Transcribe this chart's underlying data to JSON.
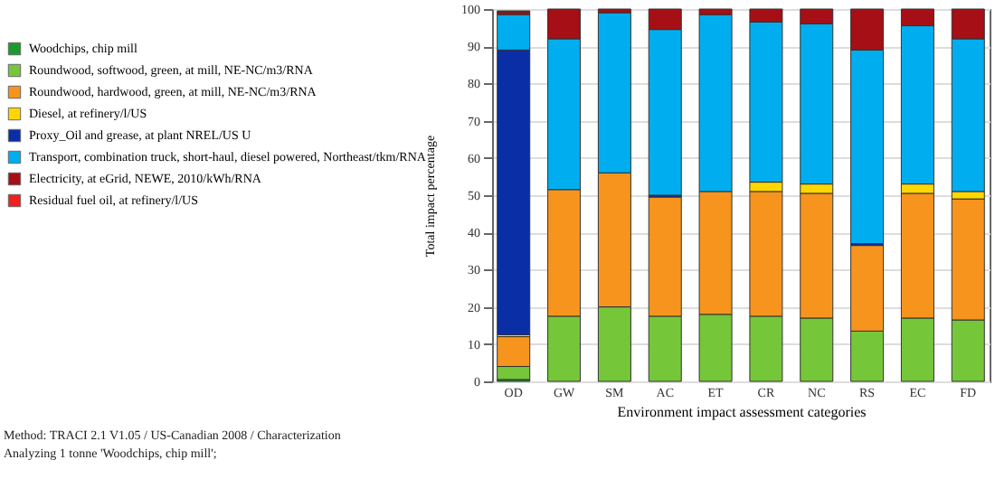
{
  "chart_data": {
    "type": "bar",
    "stacked": true,
    "xlabel": "Environment impact assessment categories",
    "ylabel": "Total impact percentage",
    "categories": [
      "OD",
      "GW",
      "SM",
      "AC",
      "ET",
      "CR",
      "NC",
      "RS",
      "EC",
      "FD"
    ],
    "series": [
      {
        "name": "Woodchips, chip mill",
        "color": "#1a9b2e",
        "values": [
          0.5,
          0,
          0,
          0,
          0,
          0,
          0,
          0,
          0,
          0
        ]
      },
      {
        "name": "Roundwood, softwood, green, at mill, NE-NC/m3/RNA",
        "color": "#76c63a",
        "values": [
          3.5,
          17.5,
          20,
          17.5,
          18,
          17.5,
          17,
          13.5,
          17,
          16.5
        ]
      },
      {
        "name": "Roundwood, hardwood, green, at mill, NE-NC/m3/RNA",
        "color": "#f7941d",
        "values": [
          8,
          34,
          36,
          32,
          33,
          33.5,
          33.5,
          23,
          33.5,
          32.5
        ]
      },
      {
        "name": "Diesel, at refinery/l/US",
        "color": "#ffd700",
        "values": [
          0.5,
          0,
          0,
          0,
          0,
          2.5,
          2.5,
          0,
          2.5,
          2
        ]
      },
      {
        "name": "Proxy_Oil and grease, at plant NREL/US U",
        "color": "#0a2ea6",
        "values": [
          76.5,
          0,
          0,
          0.5,
          0,
          0,
          0,
          0.5,
          0,
          0
        ]
      },
      {
        "name": "Transport, combination truck, short-haul, diesel powered, Northeast/tkm/RNA",
        "color": "#00aeef",
        "values": [
          9.5,
          40.5,
          43,
          44.5,
          47.5,
          43,
          43,
          52,
          42.5,
          41
        ]
      },
      {
        "name": "Electricity, at eGrid, NEWE, 2010/kWh/RNA",
        "color": "#a50f15",
        "values": [
          0.8,
          8,
          1,
          5.5,
          1.5,
          3.5,
          4,
          11,
          4.5,
          8
        ]
      },
      {
        "name": "Residual fuel oil, at refinery/l/US",
        "color": "#ee2020",
        "values": [
          0.2,
          0,
          0,
          0,
          0,
          0,
          0,
          0,
          0,
          0
        ]
      }
    ],
    "ylim": [
      0,
      100
    ],
    "yticks": [
      0,
      10,
      20,
      30,
      40,
      50,
      60,
      70,
      80,
      90,
      100
    ],
    "grid": "y",
    "legend": "top left",
    "annotations": [
      "Method: TRACI 2.1 V1.05 / US-Canadian 2008 / Characterization",
      "Analyzing 1 tonne 'Woodchips, chip mill';"
    ]
  }
}
